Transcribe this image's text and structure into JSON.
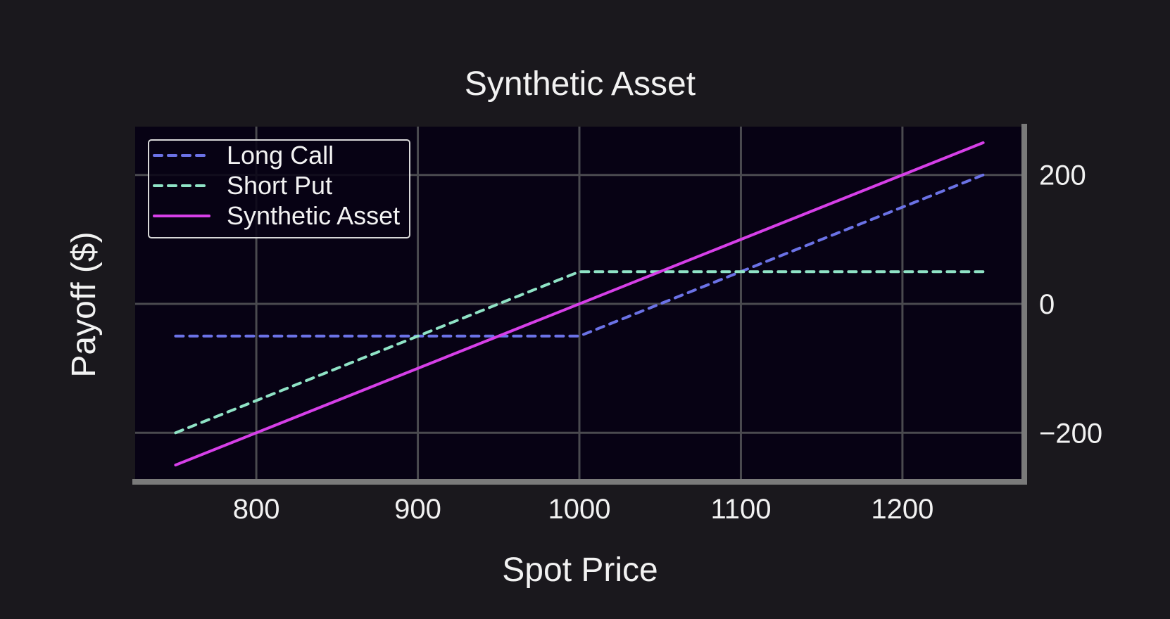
{
  "chart_data": {
    "type": "line",
    "title": "Synthetic Asset",
    "xlabel": "Spot Price",
    "ylabel": "Payoff ($)",
    "xlim": [
      725,
      1275
    ],
    "ylim": [
      -275,
      275
    ],
    "x_ticks": [
      800,
      900,
      1000,
      1100,
      1200
    ],
    "x_tick_labels": [
      "800",
      "900",
      "1000",
      "1100",
      "1200"
    ],
    "y_ticks": [
      -200,
      0,
      200
    ],
    "y_tick_labels": [
      "−200",
      "0",
      "200"
    ],
    "grid": true,
    "y_axis_side": "right",
    "legend_position": "top-left",
    "series": [
      {
        "name": "Long Call",
        "color": "#6b72e6",
        "style": "dashed",
        "x": [
          750,
          1000,
          1250
        ],
        "y": [
          -50,
          -50,
          200
        ]
      },
      {
        "name": "Short Put",
        "color": "#8fe3c6",
        "style": "dashed",
        "x": [
          750,
          1000,
          1250
        ],
        "y": [
          -200,
          50,
          50
        ]
      },
      {
        "name": "Synthetic Asset",
        "color": "#d63fe8",
        "style": "solid",
        "x": [
          750,
          1250
        ],
        "y": [
          -250,
          250
        ]
      }
    ]
  },
  "colors": {
    "page_background": "#1a181d",
    "plot_background": "#070214",
    "grid": "#4a4a4f",
    "spine": "#7a7a7a",
    "text": "#f2f2f2"
  }
}
